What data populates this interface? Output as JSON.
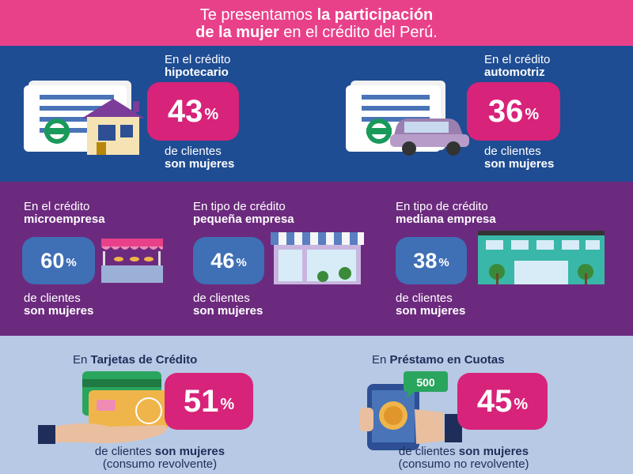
{
  "header": {
    "line1_pre": "Te presentamos ",
    "line1_bold": "la participación",
    "line2_bold": "de la mujer",
    "line2_post": " en el crédito del Perú."
  },
  "colors": {
    "pink": "#e8418a",
    "blue_band": "#1f4d93",
    "purple_band": "#6c2a7e",
    "light_band": "#b7c9e4",
    "magenta_box": "#d7237a",
    "blue_box": "#3f6fb5"
  },
  "percent_sign": "%",
  "women_label": {
    "line1": "de clientes",
    "line2": "son mujeres"
  },
  "cards": [
    {
      "id": "hipotecario",
      "label_line1": "En el crédito",
      "label_line2": "hipotecario",
      "value": "43",
      "icon": "house-document-icon"
    },
    {
      "id": "automotriz",
      "label_line1": "En el crédito",
      "label_line2": "automotriz",
      "value": "36",
      "icon": "car-document-icon"
    },
    {
      "id": "microempresa",
      "label_line1": "En el crédito",
      "label_line2": "microempresa",
      "value": "60",
      "icon": "market-stall-icon"
    },
    {
      "id": "pequena",
      "label_line1": "En tipo de crédito",
      "label_line2": "pequeña empresa",
      "value": "46",
      "icon": "shop-icon"
    },
    {
      "id": "mediana",
      "label_line1": "En tipo de crédito",
      "label_line2": "mediana empresa",
      "value": "38",
      "icon": "office-building-icon"
    },
    {
      "id": "tarjetas",
      "label_pre": "En ",
      "label_bold": "Tarjetas de Crédito",
      "value": "51",
      "sub_line1_pre": "de clientes ",
      "sub_line1_bold": "son mujeres",
      "sub_line2": "(consumo revolvente)",
      "icon": "credit-cards-hand-icon"
    },
    {
      "id": "cuotas",
      "label_pre": "En ",
      "label_bold": "Préstamo en Cuotas",
      "value": "45",
      "sub_line1_pre": "de clientes ",
      "sub_line1_bold": "son mujeres",
      "sub_line2": "(consumo no revolvente)",
      "icon": "phone-money-icon",
      "bubble_text": "500"
    }
  ]
}
